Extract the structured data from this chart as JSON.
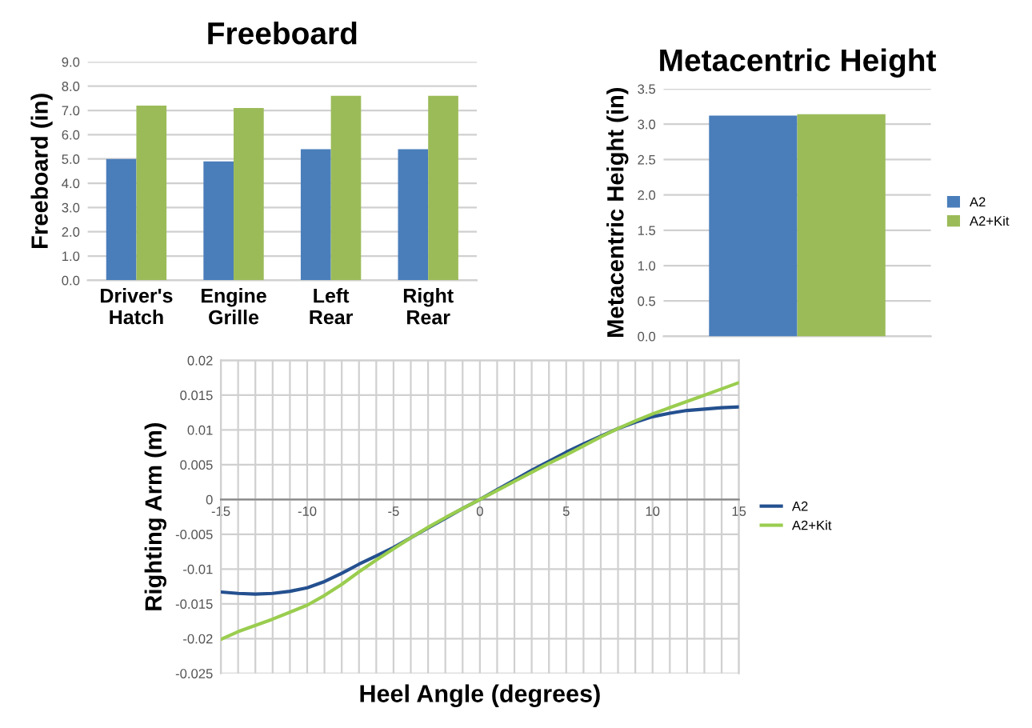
{
  "chart_data": [
    {
      "type": "bar",
      "title": "Freeboard",
      "ylabel": "Freeboard (in)",
      "categories": [
        "Driver's\nHatch",
        "Engine\nGrille",
        "Left\nRear",
        "Right\nRear"
      ],
      "series": [
        {
          "color": "#4a7ebb",
          "values": [
            5.0,
            4.9,
            5.4,
            5.4
          ]
        },
        {
          "color": "#9bbb59",
          "values": [
            7.2,
            7.1,
            7.6,
            7.6
          ]
        }
      ],
      "ylim": [
        0,
        9
      ],
      "yticks": [
        {
          "value": 0,
          "label": "0.0"
        },
        {
          "value": 1,
          "label": "1.0"
        },
        {
          "value": 2,
          "label": "2.0"
        },
        {
          "value": 3,
          "label": "3.0"
        },
        {
          "value": 4,
          "label": "4.0"
        },
        {
          "value": 5,
          "label": "5.0"
        },
        {
          "value": 6,
          "label": "6.0"
        },
        {
          "value": 7,
          "label": "7.0"
        },
        {
          "value": 8,
          "label": "8.0"
        },
        {
          "value": 9,
          "label": "9.0"
        }
      ],
      "grid": "y",
      "legend": false
    },
    {
      "type": "bar",
      "title": "Metacentric Height",
      "ylabel": "Metacentric Height (in)",
      "categories": [
        null
      ],
      "series": [
        {
          "name": "A2",
          "color": "#4a7ebb",
          "values": [
            3.12
          ]
        },
        {
          "name": "A2+Kit",
          "color": "#9bbb59",
          "values": [
            3.14
          ]
        }
      ],
      "ylim": [
        0,
        3.5
      ],
      "yticks": [
        {
          "value": 0,
          "label": "0.0"
        },
        {
          "value": 0.5,
          "label": "0.5"
        },
        {
          "value": 1,
          "label": "1.0"
        },
        {
          "value": 1.5,
          "label": "1.5"
        },
        {
          "value": 2,
          "label": "2.0"
        },
        {
          "value": 2.5,
          "label": "2.5"
        },
        {
          "value": 3,
          "label": "3.0"
        },
        {
          "value": 3.5,
          "label": "3.5"
        }
      ],
      "grid": "y",
      "legend": "right",
      "tick_labels": "y"
    },
    {
      "type": "line",
      "xlabel": "Heel Angle (degrees)",
      "ylabel": "Righting Arm (m)",
      "x": [
        -15,
        -14,
        -13,
        -12,
        -11,
        -10,
        -9,
        -8,
        -7,
        -6,
        -5,
        -4,
        -3,
        -2,
        -1,
        0,
        1,
        2,
        3,
        4,
        5,
        6,
        7,
        8,
        9,
        10,
        11,
        12,
        13,
        14,
        15
      ],
      "series": [
        {
          "name": "A2",
          "color": "#24508f",
          "values": [
            -0.0133,
            -0.0135,
            -0.0136,
            -0.0135,
            -0.0132,
            -0.0127,
            -0.0118,
            -0.0106,
            -0.0093,
            -0.0081,
            -0.0069,
            -0.0055,
            -0.0041,
            -0.0027,
            -0.0013,
            0,
            0.0014,
            0.0028,
            0.0042,
            0.0055,
            0.0068,
            0.008,
            0.0091,
            0.0102,
            0.0111,
            0.0119,
            0.0124,
            0.0128,
            0.013,
            0.0132,
            0.0133
          ]
        },
        {
          "name": "A2+Kit",
          "color": "#9acd4f",
          "values": [
            -0.0201,
            -0.019,
            -0.0181,
            -0.0172,
            -0.0162,
            -0.0152,
            -0.0138,
            -0.0122,
            -0.0104,
            -0.0087,
            -0.0071,
            -0.0055,
            -0.004,
            -0.0026,
            -0.0013,
            0,
            0.0013,
            0.0026,
            0.0039,
            0.0052,
            0.0064,
            0.0077,
            0.009,
            0.0102,
            0.0113,
            0.0123,
            0.0132,
            0.0141,
            0.015,
            0.0159,
            0.0168
          ]
        }
      ],
      "xlim": [
        -15,
        15
      ],
      "xticks": [
        -15,
        {
          "value": -14,
          "label": null
        },
        {
          "value": -13,
          "label": null
        },
        {
          "value": -12,
          "label": null
        },
        {
          "value": -11,
          "label": null
        },
        -10,
        {
          "value": -9,
          "label": null
        },
        {
          "value": -8,
          "label": null
        },
        {
          "value": -7,
          "label": null
        },
        {
          "value": -6,
          "label": null
        },
        -5,
        {
          "value": -4,
          "label": null
        },
        {
          "value": -3,
          "label": null
        },
        {
          "value": -2,
          "label": null
        },
        {
          "value": -1,
          "label": null
        },
        0,
        {
          "value": 1,
          "label": null
        },
        {
          "value": 2,
          "label": null
        },
        {
          "value": 3,
          "label": null
        },
        {
          "value": 4,
          "label": null
        },
        5,
        {
          "value": 6,
          "label": null
        },
        {
          "value": 7,
          "label": null
        },
        {
          "value": 8,
          "label": null
        },
        {
          "value": 9,
          "label": null
        },
        10,
        {
          "value": 11,
          "label": null
        },
        {
          "value": 12,
          "label": null
        },
        {
          "value": 13,
          "label": null
        },
        {
          "value": 14,
          "label": null
        },
        15
      ],
      "ylim": [
        -0.025,
        0.02
      ],
      "yticks": [
        -0.025,
        -0.02,
        -0.015,
        -0.01,
        -0.005,
        0,
        0.005,
        0.01,
        0.015,
        0.02
      ],
      "grid": true,
      "legend": "right",
      "marker": "none",
      "line_style": "solid"
    }
  ]
}
